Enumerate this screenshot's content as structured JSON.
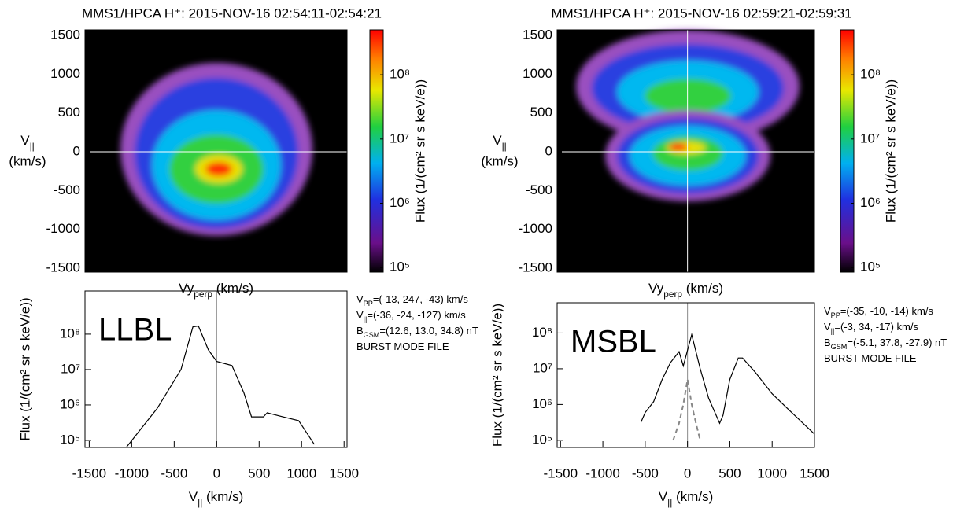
{
  "chart_data": [
    {
      "type": "heatmap",
      "title": "MMS1/HPCA H⁺: 2015-NOV-16 02:54:11-02:54:21",
      "xlabel": [
        "Vy",
        "perp",
        " (km/s)"
      ],
      "ylabel": [
        "V",
        "||",
        "(km/s)"
      ],
      "xlim": [
        -1540,
        1540
      ],
      "ylim": [
        -1550,
        1570
      ],
      "yticks": [
        1500,
        1000,
        500,
        0,
        -500,
        -1000,
        -1500
      ],
      "colorbar": {
        "label": "Flux (1/(cm² sr s keV/e))",
        "log": true,
        "lim": [
          85000,
          500000000
        ],
        "ticks": [
          {
            "value": 100000,
            "label": "10⁵"
          },
          {
            "value": 1000000,
            "label": "10⁶"
          },
          {
            "value": 10000000,
            "label": "10⁷"
          },
          {
            "value": 100000000,
            "label": "10⁸"
          }
        ]
      }
    },
    {
      "type": "line",
      "label": "LLBL",
      "xlabel": [
        "V",
        "||",
        " (km/s)"
      ],
      "ylabel": "Flux (1/(cm² sr s keV/e))",
      "xlim": [
        -1550,
        1535
      ],
      "xticks": [
        -1500,
        -1000,
        -500,
        0,
        500,
        1000,
        1500
      ],
      "ylog": true,
      "ylim": [
        63000,
        1660000000
      ],
      "yticks": [
        {
          "value": 100000,
          "label": "10⁵"
        },
        {
          "value": 1000000,
          "label": "10⁶"
        },
        {
          "value": 10000000,
          "label": "10⁷"
        },
        {
          "value": 100000000,
          "label": "10⁸"
        }
      ],
      "annotations": [
        [
          "V",
          "PP",
          "=(-13, 247, -43) km/s"
        ],
        [
          "V",
          "||",
          "=(-36, -24, -127) km/s"
        ],
        [
          "B",
          "GSM",
          "=(12.6, 13.0, 34.8) nT"
        ],
        [
          "BURST MODE FILE"
        ]
      ],
      "series": [
        {
          "color": "#000000",
          "linestyle": "solid",
          "x": [
            -1065,
            -700,
            -420,
            -280,
            -215,
            -97,
            0,
            180,
            320,
            410,
            550,
            595,
            780,
            965,
            1150
          ],
          "values": [
            63000,
            800000,
            10000000,
            160000000,
            170000000,
            36000000,
            17000000,
            13000000,
            2200000,
            460000,
            460000,
            600000,
            460000,
            360000,
            77000
          ]
        }
      ]
    },
    {
      "type": "heatmap",
      "title": "MMS1/HPCA H⁺: 2015-NOV-16 02:59:21-02:59:31",
      "xlabel": [
        "Vy",
        "perp",
        " (km/s)"
      ],
      "ylabel": [
        "V",
        "||",
        "(km/s)"
      ],
      "xlim": [
        -1540,
        1500
      ],
      "ylim": [
        -1550,
        1570
      ],
      "yticks": [
        1500,
        1000,
        500,
        0,
        -500,
        -1000,
        -1500
      ],
      "colorbar": {
        "label": "Flux (1/(cm² sr s keV/e))",
        "log": true,
        "lim": [
          85000,
          500000000
        ],
        "ticks": [
          {
            "value": 100000,
            "label": "10⁵"
          },
          {
            "value": 1000000,
            "label": "10⁶"
          },
          {
            "value": 10000000,
            "label": "10⁷"
          },
          {
            "value": 100000000,
            "label": "10⁸"
          }
        ]
      }
    },
    {
      "type": "line",
      "label": "MSBL",
      "xlabel": [
        "V",
        "||",
        " (km/s)"
      ],
      "ylabel": "Flux (1/(cm² sr s keV/e))",
      "xlim": [
        -1540,
        1500
      ],
      "xticks": [
        -1500,
        -1000,
        -500,
        0,
        500,
        1000,
        1500
      ],
      "ylog": true,
      "ylim": [
        63000,
        700000000
      ],
      "yticks": [
        {
          "value": 100000,
          "label": "10⁵"
        },
        {
          "value": 1000000,
          "label": "10⁶"
        },
        {
          "value": 10000000,
          "label": "10⁷"
        },
        {
          "value": 100000000,
          "label": "10⁸"
        }
      ],
      "annotations": [
        [
          "V",
          "PP",
          "=(-35, -10, -14) km/s"
        ],
        [
          "V",
          "||",
          "=(-3, 34, -17) km/s"
        ],
        [
          "B",
          "GSM",
          "=(-5.1, 37.8, -27.9) nT"
        ],
        [
          "BURST MODE FILE"
        ]
      ],
      "series": [
        {
          "color": "#000000",
          "linestyle": "solid",
          "x": [
            -550,
            -500,
            -400,
            -300,
            -200,
            -100,
            -50,
            50,
            150,
            250,
            380,
            420,
            500,
            600,
            650,
            800,
            1000,
            1200,
            1400,
            1500
          ],
          "values": [
            320000,
            600000,
            1200000,
            5000000,
            15000000,
            30000000,
            12000000,
            90000000,
            10000000,
            1500000,
            300000,
            500000,
            5000000,
            20000000,
            20000000,
            8000000,
            2000000,
            700000,
            250000,
            150000
          ]
        },
        {
          "color": "#888888",
          "linestyle": "dashed",
          "x": [
            -170,
            -100,
            -50,
            0,
            50,
            100,
            150
          ],
          "values": [
            100000,
            300000,
            1000000,
            5000000,
            1000000,
            300000,
            100000
          ]
        }
      ]
    }
  ]
}
